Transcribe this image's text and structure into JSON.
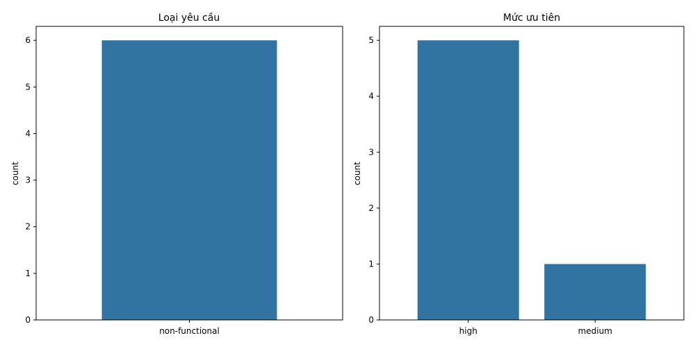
{
  "chart_data": [
    {
      "type": "bar",
      "title": "Loại yêu cầu",
      "xlabel": "",
      "ylabel": "count",
      "categories": [
        "non-functional"
      ],
      "values": [
        6
      ],
      "ylim": [
        0,
        6.3
      ],
      "yticks": [
        "0",
        "1",
        "2",
        "3",
        "4",
        "5",
        "6"
      ],
      "bar_color": "#3274a1"
    },
    {
      "type": "bar",
      "title": "Mức ưu tiên",
      "xlabel": "",
      "ylabel": "count",
      "categories": [
        "high",
        "medium"
      ],
      "values": [
        5,
        1
      ],
      "ylim": [
        0,
        5.25
      ],
      "yticks": [
        "0",
        "1",
        "2",
        "3",
        "4",
        "5"
      ],
      "bar_color": "#3274a1"
    }
  ]
}
